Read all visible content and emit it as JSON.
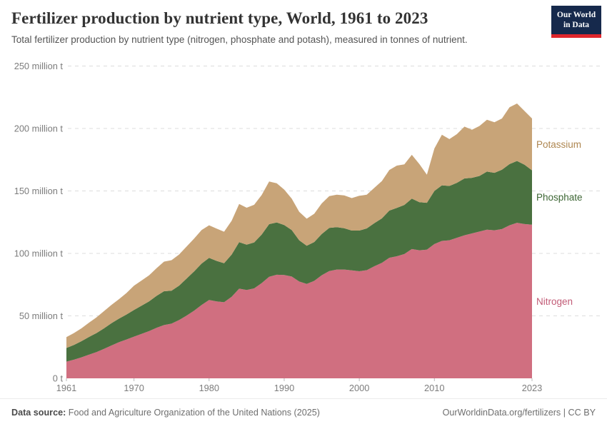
{
  "header": {
    "title": "Fertilizer production by nutrient type, World, 1961 to 2023",
    "subtitle": "Total fertilizer production by nutrient type (nitrogen, phosphate and potash), measured in tonnes of nutrient.",
    "logo_line1": "Our World",
    "logo_line2": "in Data"
  },
  "footer": {
    "source_label": "Data source:",
    "source_text": " Food and Agriculture Organization of the United Nations (2025)",
    "credit": "OurWorldinData.org/fertilizers | CC BY"
  },
  "chart_data": {
    "type": "area",
    "stacked": true,
    "title": "Fertilizer production by nutrient type, World, 1961 to 2023",
    "unit": "million tonnes of nutrient",
    "grid": "dashed horizontal",
    "legend_position": "right",
    "ylim": [
      0,
      250
    ],
    "xlim": [
      1961,
      2023
    ],
    "xticks": [
      1961,
      1970,
      1980,
      1990,
      2000,
      2010,
      2023
    ],
    "yticks": [
      {
        "value": 0,
        "label": "0 t"
      },
      {
        "value": 50,
        "label": "50 million t"
      },
      {
        "value": 100,
        "label": "100 million t"
      },
      {
        "value": 150,
        "label": "150 million t"
      },
      {
        "value": 200,
        "label": "200 million t"
      },
      {
        "value": 250,
        "label": "250 million t"
      }
    ],
    "x": [
      1961,
      1962,
      1963,
      1964,
      1965,
      1966,
      1967,
      1968,
      1969,
      1970,
      1971,
      1972,
      1973,
      1974,
      1975,
      1976,
      1977,
      1978,
      1979,
      1980,
      1981,
      1982,
      1983,
      1984,
      1985,
      1986,
      1987,
      1988,
      1989,
      1990,
      1991,
      1992,
      1993,
      1994,
      1995,
      1996,
      1997,
      1998,
      1999,
      2000,
      2001,
      2002,
      2003,
      2004,
      2005,
      2006,
      2007,
      2008,
      2009,
      2010,
      2011,
      2012,
      2013,
      2014,
      2015,
      2016,
      2017,
      2018,
      2019,
      2020,
      2021,
      2022,
      2023
    ],
    "series": [
      {
        "name": "Nitrogen",
        "fill_color": "#D06F80",
        "label_color": "#C25B76",
        "values": [
          13.4,
          14.9,
          16.8,
          18.9,
          21.0,
          23.6,
          26.3,
          28.9,
          31.1,
          33.4,
          35.6,
          37.8,
          40.4,
          42.6,
          43.8,
          46.6,
          50.2,
          54.1,
          58.7,
          62.7,
          61.6,
          60.9,
          65.3,
          71.8,
          70.7,
          72.0,
          76.2,
          81.3,
          82.9,
          82.7,
          81.5,
          77.5,
          75.6,
          78.0,
          82.5,
          85.9,
          87.1,
          87.1,
          86.4,
          85.7,
          86.6,
          89.7,
          92.4,
          96.5,
          97.7,
          99.5,
          103.5,
          102.5,
          103.0,
          107.5,
          110.0,
          110.5,
          112.5,
          114.5,
          116.0,
          117.5,
          119.0,
          118.5,
          119.5,
          122.5,
          124.5,
          123.5,
          123.0
        ]
      },
      {
        "name": "Phosphate",
        "fill_color": "#4A7140",
        "label_color": "#3D6634",
        "values": [
          10.9,
          11.8,
          12.9,
          14.2,
          15.2,
          16.4,
          17.8,
          18.9,
          20.0,
          21.3,
          22.5,
          23.8,
          25.6,
          27.1,
          26.4,
          27.5,
          29.6,
          31.5,
          33.2,
          33.7,
          32.4,
          31.2,
          33.8,
          37.2,
          36.3,
          36.8,
          38.9,
          42.1,
          41.9,
          40.0,
          37.2,
          33.0,
          30.5,
          31.1,
          33.0,
          34.5,
          33.9,
          33.1,
          31.9,
          32.6,
          33.4,
          34.5,
          35.6,
          37.8,
          38.7,
          39.3,
          40.4,
          38.5,
          37.5,
          42.5,
          44.5,
          43.5,
          44.0,
          45.5,
          44.5,
          44.5,
          46.5,
          46.0,
          47.5,
          49.0,
          49.5,
          47.5,
          43.5
        ]
      },
      {
        "name": "Potassium",
        "fill_color": "#C8A478",
        "label_color": "#AE8650",
        "values": [
          8.7,
          9.5,
          10.3,
          11.4,
          12.6,
          13.8,
          14.7,
          15.6,
          17.2,
          19.4,
          20.2,
          20.8,
          22.1,
          23.7,
          24.4,
          25.0,
          25.7,
          26.3,
          26.8,
          26.1,
          25.9,
          25.3,
          27.1,
          30.6,
          29.6,
          30.1,
          31.6,
          34.2,
          31.3,
          28.4,
          25.1,
          22.8,
          21.7,
          22.6,
          24.5,
          25.4,
          26.0,
          26.2,
          26.0,
          27.8,
          27.0,
          28.3,
          29.9,
          32.5,
          33.9,
          32.5,
          35.0,
          30.5,
          22.5,
          34.0,
          40.5,
          37.5,
          39.0,
          41.5,
          38.5,
          40.0,
          41.5,
          40.5,
          41.0,
          45.5,
          46.0,
          43.0,
          41.5
        ]
      }
    ]
  }
}
